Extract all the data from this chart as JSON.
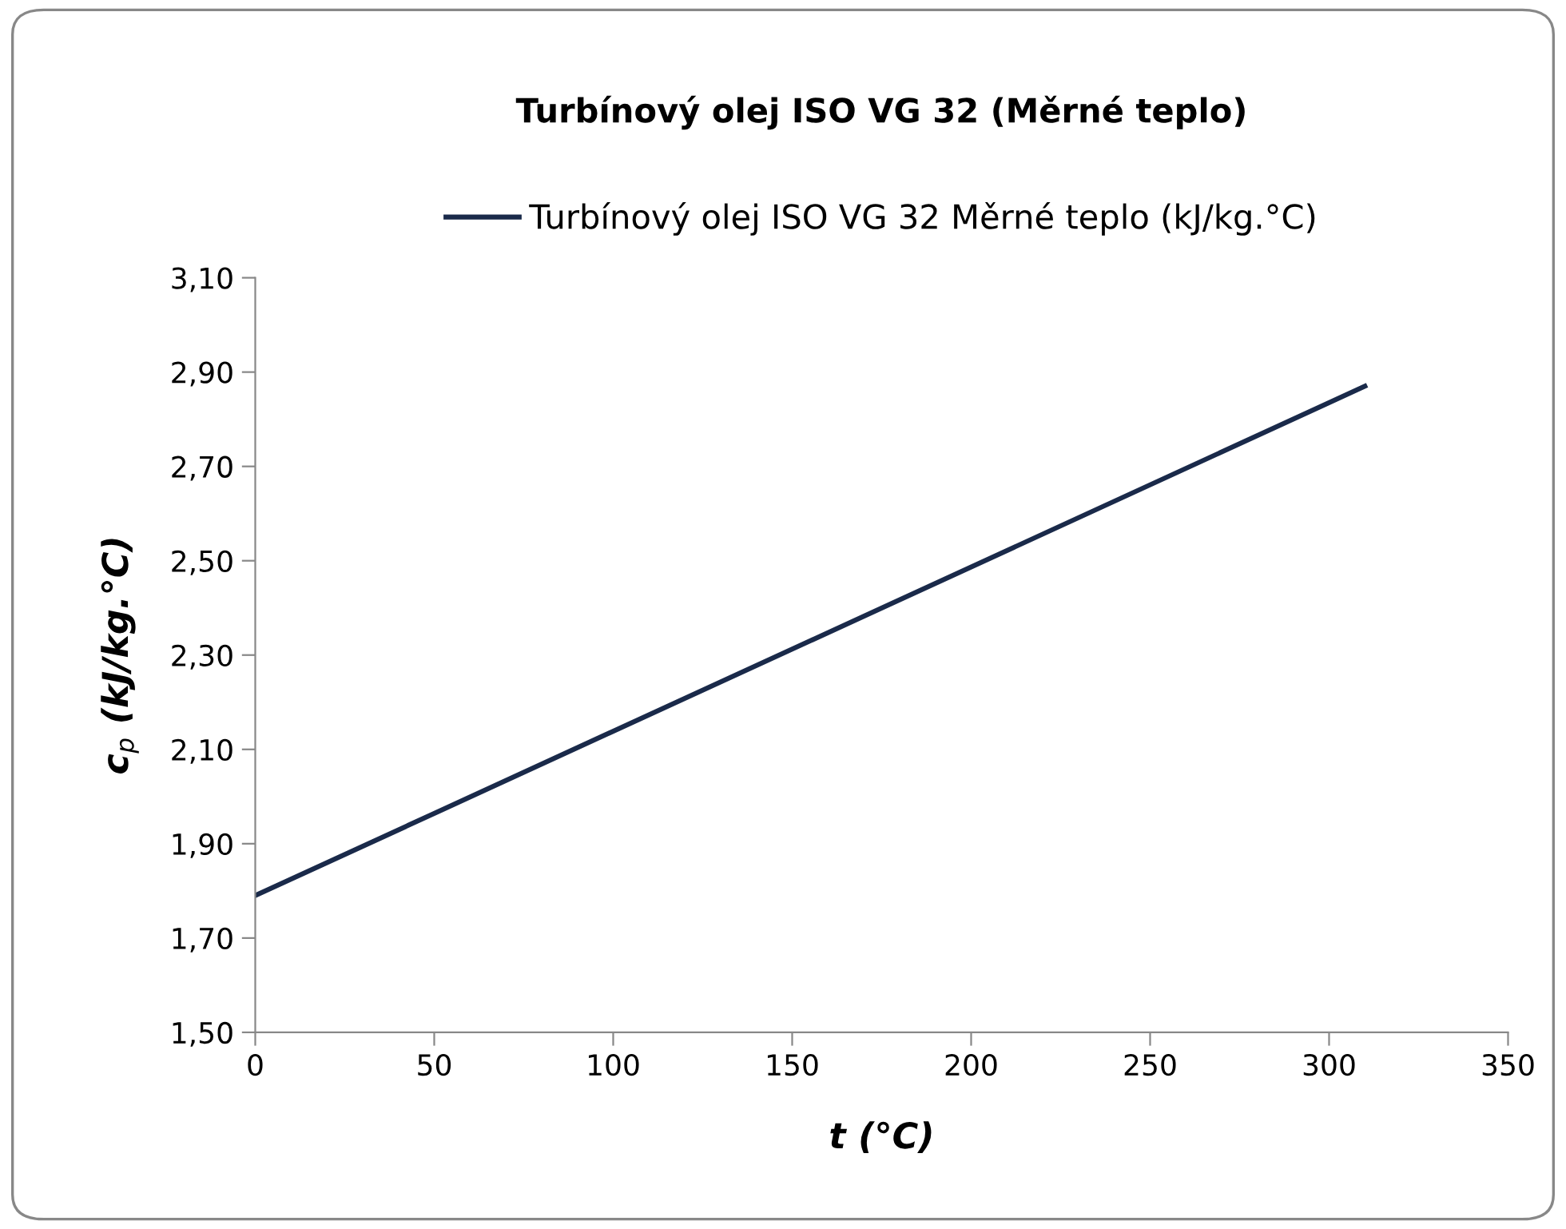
{
  "chart_data": {
    "type": "line",
    "title": "Turbínový olej ISO VG 32 (Měrné teplo)",
    "xlabel": "t (°C)",
    "ylabel": "c$_{p}$ (kJ/kg.°C)",
    "series": [
      {
        "name": "Turbínový olej ISO VG 32 Měrné teplo (kJ/kg.°C)",
        "color": "#1a2a4a",
        "x": [
          0,
          155,
          310
        ],
        "values": [
          1.79,
          2.33,
          2.87
        ]
      }
    ],
    "xlim": [
      0,
      350
    ],
    "xticks": [
      0,
      50,
      100,
      150,
      200,
      250,
      300,
      350
    ],
    "ylim": [
      1.5,
      3.1
    ],
    "yticks": [
      {
        "value": 1.5,
        "label": "1,50"
      },
      {
        "value": 1.7,
        "label": "1,70"
      },
      {
        "value": 1.9,
        "label": "1,90"
      },
      {
        "value": 2.1,
        "label": "2,10"
      },
      {
        "value": 2.3,
        "label": "2,30"
      },
      {
        "value": 2.5,
        "label": "2,50"
      },
      {
        "value": 2.7,
        "label": "2,70"
      },
      {
        "value": 2.9,
        "label": "2,90"
      },
      {
        "value": 3.1,
        "label": "3,10"
      }
    ],
    "grid": false,
    "legend": "top",
    "marker": "none",
    "line_style": "solid"
  }
}
